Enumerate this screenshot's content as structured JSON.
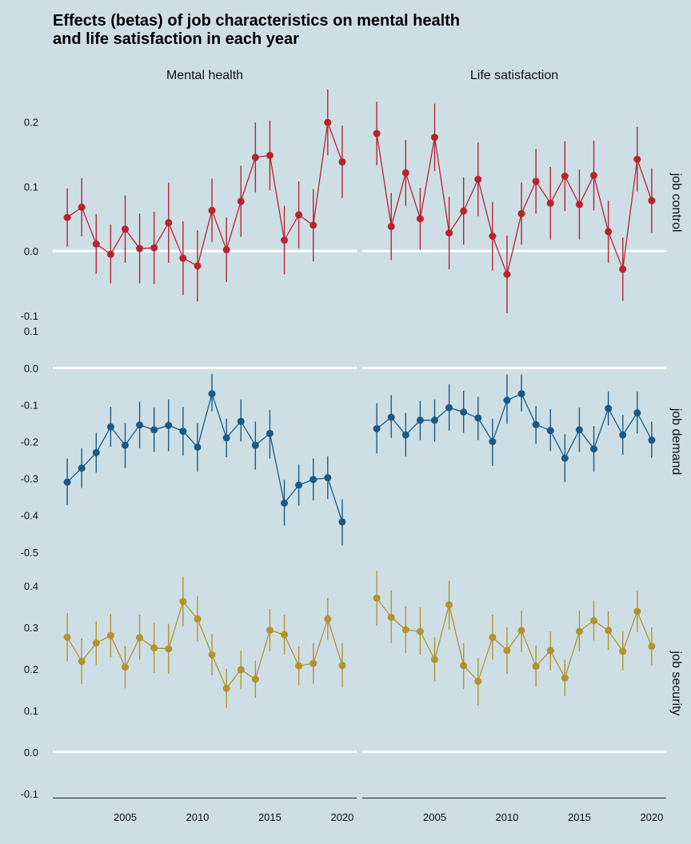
{
  "title_lines": [
    "Effects (betas) of job characteristics on mental health",
    "and life satisfaction in each year"
  ],
  "chart_data": {
    "type": "scatter",
    "title": "Effects (betas) of job characteristics on mental health and life satisfaction in each year",
    "columns": [
      "Mental health",
      "Life satisfaction"
    ],
    "x_ticks": [
      2005,
      2010,
      2015,
      2020
    ],
    "xlim": [
      2000,
      2021
    ],
    "grid": false,
    "rows": [
      {
        "label": "job  control",
        "color": "#b8232e",
        "ylim": [
          -0.1,
          0.25
        ],
        "y_ticks": [
          -0.1,
          0.0,
          0.1,
          0.2
        ],
        "series": [
          {
            "panel": "Mental health",
            "x": [
              2001,
              2002,
              2003,
              2004,
              2005,
              2006,
              2007,
              2008,
              2009,
              2010,
              2011,
              2012,
              2013,
              2014,
              2015,
              2016,
              2017,
              2018,
              2019,
              2020
            ],
            "y": [
              0.052,
              0.068,
              0.011,
              -0.005,
              0.034,
              0.004,
              0.005,
              0.044,
              -0.011,
              -0.023,
              0.063,
              0.002,
              0.077,
              0.145,
              0.148,
              0.017,
              0.056,
              0.04,
              0.199,
              0.138
            ],
            "lo": [
              0.007,
              0.023,
              -0.035,
              -0.05,
              -0.018,
              -0.05,
              -0.051,
              -0.018,
              -0.068,
              -0.078,
              0.014,
              -0.048,
              0.022,
              0.091,
              0.094,
              -0.036,
              0.004,
              -0.016,
              0.148,
              0.082
            ],
            "hi": [
              0.097,
              0.113,
              0.057,
              0.041,
              0.086,
              0.058,
              0.061,
              0.106,
              0.046,
              0.032,
              0.112,
              0.052,
              0.132,
              0.199,
              0.202,
              0.07,
              0.108,
              0.096,
              0.25,
              0.194
            ]
          },
          {
            "panel": "Life satisfaction",
            "x": [
              2001,
              2002,
              2003,
              2004,
              2005,
              2006,
              2007,
              2008,
              2009,
              2010,
              2011,
              2012,
              2013,
              2014,
              2015,
              2016,
              2017,
              2018,
              2019,
              2020
            ],
            "y": [
              0.182,
              0.038,
              0.121,
              0.05,
              0.176,
              0.028,
              0.062,
              0.111,
              0.023,
              -0.036,
              0.058,
              0.108,
              0.074,
              0.116,
              0.072,
              0.117,
              0.03,
              -0.028,
              0.142,
              0.078
            ],
            "lo": [
              0.133,
              -0.014,
              0.07,
              0.002,
              0.124,
              -0.028,
              0.01,
              0.054,
              -0.03,
              -0.096,
              0.01,
              0.058,
              0.018,
              0.062,
              0.018,
              0.063,
              -0.018,
              -0.077,
              0.092,
              0.028
            ],
            "hi": [
              0.231,
              0.09,
              0.172,
              0.098,
              0.228,
              0.084,
              0.114,
              0.168,
              0.076,
              0.024,
              0.106,
              0.158,
              0.13,
              0.17,
              0.126,
              0.171,
              0.078,
              0.021,
              0.192,
              0.128
            ]
          }
        ]
      },
      {
        "label": "job  demand",
        "color": "#1a5a85",
        "ylim": [
          -0.52,
          0.12
        ],
        "y_ticks": [
          -0.5,
          -0.4,
          -0.3,
          -0.2,
          -0.1,
          0.0,
          0.1
        ],
        "series": [
          {
            "panel": "Mental health",
            "x": [
              2001,
              2002,
              2003,
              2004,
              2005,
              2006,
              2007,
              2008,
              2009,
              2010,
              2011,
              2012,
              2013,
              2014,
              2015,
              2016,
              2017,
              2018,
              2019,
              2020
            ],
            "y": [
              -0.31,
              -0.272,
              -0.23,
              -0.16,
              -0.21,
              -0.155,
              -0.168,
              -0.156,
              -0.172,
              -0.215,
              -0.07,
              -0.19,
              -0.145,
              -0.21,
              -0.178,
              -0.367,
              -0.318,
              -0.303,
              -0.298,
              -0.418
            ],
            "lo": [
              -0.372,
              -0.326,
              -0.284,
              -0.214,
              -0.272,
              -0.218,
              -0.228,
              -0.226,
              -0.238,
              -0.282,
              -0.118,
              -0.242,
              -0.2,
              -0.276,
              -0.246,
              -0.428,
              -0.374,
              -0.36,
              -0.356,
              -0.482
            ],
            "hi": [
              -0.246,
              -0.218,
              -0.176,
              -0.106,
              -0.15,
              -0.092,
              -0.108,
              -0.086,
              -0.106,
              -0.15,
              -0.016,
              -0.138,
              -0.086,
              -0.146,
              -0.114,
              -0.304,
              -0.262,
              -0.246,
              -0.24,
              -0.356
            ]
          },
          {
            "panel": "Life satisfaction",
            "x": [
              2001,
              2002,
              2003,
              2004,
              2005,
              2006,
              2007,
              2008,
              2009,
              2010,
              2011,
              2012,
              2013,
              2014,
              2015,
              2016,
              2017,
              2018,
              2019,
              2020
            ],
            "y": [
              -0.165,
              -0.134,
              -0.182,
              -0.142,
              -0.142,
              -0.108,
              -0.12,
              -0.136,
              -0.2,
              -0.088,
              -0.07,
              -0.154,
              -0.17,
              -0.245,
              -0.168,
              -0.22,
              -0.11,
              -0.182,
              -0.122,
              -0.196
            ],
            "lo": [
              -0.232,
              -0.19,
              -0.24,
              -0.196,
              -0.2,
              -0.17,
              -0.176,
              -0.196,
              -0.266,
              -0.152,
              -0.118,
              -0.206,
              -0.226,
              -0.31,
              -0.228,
              -0.282,
              -0.156,
              -0.236,
              -0.178,
              -0.244
            ],
            "hi": [
              -0.096,
              -0.074,
              -0.122,
              -0.09,
              -0.086,
              -0.044,
              -0.062,
              -0.078,
              -0.138,
              -0.018,
              -0.018,
              -0.104,
              -0.112,
              -0.18,
              -0.108,
              -0.158,
              -0.064,
              -0.128,
              -0.064,
              -0.146
            ]
          }
        ]
      },
      {
        "label": "job  security",
        "color": "#b5922e",
        "ylim": [
          -0.11,
          0.44
        ],
        "y_ticks": [
          -0.1,
          0.0,
          0.1,
          0.2,
          0.3,
          0.4
        ],
        "series": [
          {
            "panel": "Mental health",
            "x": [
              2001,
              2002,
              2003,
              2004,
              2005,
              2006,
              2007,
              2008,
              2009,
              2010,
              2011,
              2012,
              2013,
              2014,
              2015,
              2016,
              2017,
              2018,
              2019,
              2020
            ],
            "y": [
              0.276,
              0.218,
              0.262,
              0.28,
              0.204,
              0.275,
              0.25,
              0.248,
              0.362,
              0.32,
              0.234,
              0.153,
              0.198,
              0.175,
              0.293,
              0.282,
              0.207,
              0.213,
              0.32,
              0.208
            ],
            "lo": [
              0.218,
              0.163,
              0.21,
              0.228,
              0.153,
              0.222,
              0.19,
              0.188,
              0.302,
              0.266,
              0.184,
              0.106,
              0.152,
              0.13,
              0.242,
              0.234,
              0.16,
              0.164,
              0.27,
              0.155
            ],
            "hi": [
              0.334,
              0.273,
              0.314,
              0.332,
              0.255,
              0.33,
              0.31,
              0.308,
              0.422,
              0.375,
              0.284,
              0.2,
              0.244,
              0.22,
              0.344,
              0.33,
              0.254,
              0.262,
              0.37,
              0.261
            ]
          },
          {
            "panel": "Life satisfaction",
            "x": [
              2001,
              2002,
              2003,
              2004,
              2005,
              2006,
              2007,
              2008,
              2009,
              2010,
              2011,
              2012,
              2013,
              2014,
              2015,
              2016,
              2017,
              2018,
              2019,
              2020
            ],
            "y": [
              0.37,
              0.324,
              0.294,
              0.29,
              0.222,
              0.354,
              0.208,
              0.17,
              0.276,
              0.244,
              0.292,
              0.206,
              0.244,
              0.178,
              0.29,
              0.316,
              0.292,
              0.242,
              0.338,
              0.254
            ],
            "lo": [
              0.304,
              0.262,
              0.238,
              0.234,
              0.17,
              0.294,
              0.152,
              0.112,
              0.222,
              0.188,
              0.24,
              0.156,
              0.196,
              0.134,
              0.242,
              0.268,
              0.246,
              0.196,
              0.288,
              0.208
            ],
            "hi": [
              0.436,
              0.388,
              0.35,
              0.348,
              0.276,
              0.412,
              0.262,
              0.226,
              0.33,
              0.3,
              0.34,
              0.256,
              0.29,
              0.222,
              0.34,
              0.364,
              0.338,
              0.29,
              0.388,
              0.3
            ]
          }
        ]
      }
    ]
  }
}
